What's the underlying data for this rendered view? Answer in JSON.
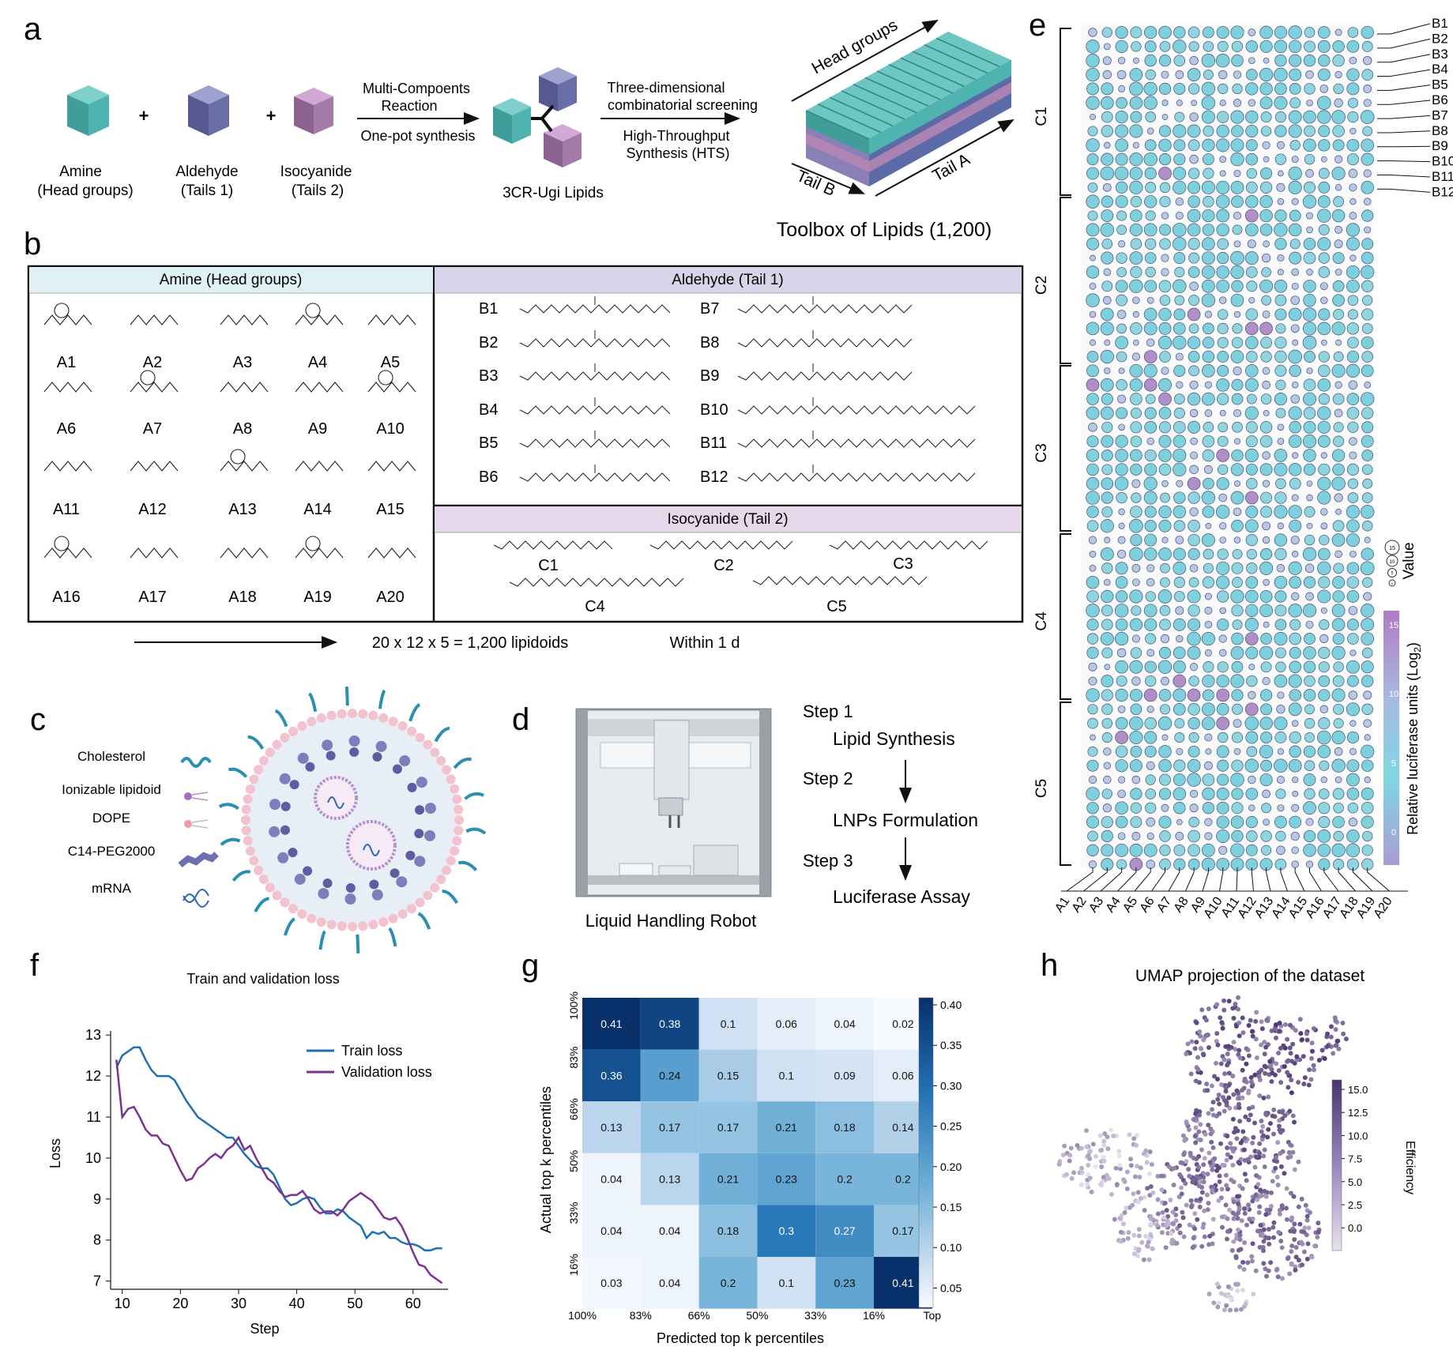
{
  "panel_letters": {
    "a": "a",
    "b": "b",
    "c": "c",
    "d": "d",
    "e": "e",
    "f": "f",
    "g": "g",
    "h": "h"
  },
  "a": {
    "amine_l1": "Amine",
    "amine_l2": "(Head groups)",
    "aldehyde_l1": "Aldehyde",
    "aldehyde_l2": "(Tails 1)",
    "isocyanide_l1": "Isocyanide",
    "isocyanide_l2": "(Tails 2)",
    "plus": "+",
    "mc_l1": "Multi-Compoents",
    "mc_l2": "Reaction",
    "onepot": "One-pot synthesis",
    "ugi": "3CR-Ugi Lipids",
    "three_l1": "Three-dimensional",
    "three_l2": "combinatorial screening",
    "hts_l1": "High-Throughput",
    "hts_l2": "Synthesis (HTS)",
    "head_groups": "Head groups",
    "tail_b": "Tail B",
    "tail_a": "Tail A",
    "toolbox": "Toolbox of Lipids (1,200)",
    "colors": {
      "amine": "#4fb3b0",
      "aldehyde": "#6a6ea8",
      "isocyanide": "#a27aa5"
    }
  },
  "b": {
    "amine_header": "Amine  (Head groups)",
    "aldehyde_header": "Aldehyde  (Tail 1)",
    "isocyanide_header": "Isocyanide (Tail 2)",
    "amines": [
      "A1",
      "A2",
      "A3",
      "A4",
      "A5",
      "A6",
      "A7",
      "A8",
      "A9",
      "A10",
      "A11",
      "A12",
      "A13",
      "A14",
      "A15",
      "A16",
      "A17",
      "A18",
      "A19",
      "A20"
    ],
    "aldehydes": [
      "B1",
      "B2",
      "B3",
      "B4",
      "B5",
      "B6",
      "B7",
      "B8",
      "B9",
      "B10",
      "B11",
      "B12"
    ],
    "isocyanides": [
      "C1",
      "C2",
      "C3",
      "C4",
      "C5"
    ],
    "formula": "20 x 12 x 5 = 1,200 lipidoids",
    "within": "Within 1 d",
    "colors": {
      "amine_header": "#dff1f4",
      "aldehyde_header": "#d5d4e8",
      "isocyanide_header": "#e6d7ea"
    }
  },
  "c": {
    "legend": [
      "Cholesterol",
      "Ionizable lipidoid",
      "DOPE",
      "C14-PEG2000",
      "mRNA"
    ]
  },
  "d": {
    "robot": "Liquid Handling Robot",
    "step1": "Step 1",
    "step1_desc": "Lipid Synthesis",
    "step2": "Step 2",
    "step2_desc": "LNPs Formulation",
    "step3": "Step 3",
    "step3_desc": "Luciferase Assay"
  },
  "e": {
    "value_label": "Value",
    "colorbar_label": "Relative luciferase units (Log",
    "colorbar_sub": "2",
    "colorbar_close": ")",
    "colorbar_ticks": [
      "15",
      "10",
      "5",
      "0"
    ],
    "size_legend": [
      "15",
      "10",
      "5",
      "0"
    ]
  },
  "chart_data": [
    {
      "type": "line",
      "title": "Train and validation loss",
      "xlabel": "Step",
      "ylabel": "Loss",
      "xlim": [
        8,
        66
      ],
      "ylim": [
        6.8,
        13.1
      ],
      "xticks": [
        10,
        20,
        30,
        40,
        50,
        60
      ],
      "yticks": [
        7,
        8,
        9,
        10,
        11,
        12,
        13
      ],
      "series": [
        {
          "name": "Train loss",
          "color": "#1f6fb5",
          "x": [
            9,
            10,
            11,
            12,
            13,
            14,
            15,
            16,
            17,
            18,
            19,
            20,
            21,
            22,
            23,
            24,
            25,
            26,
            27,
            28,
            29,
            30,
            31,
            32,
            33,
            34,
            35,
            36,
            37,
            38,
            39,
            40,
            41,
            42,
            43,
            44,
            45,
            46,
            47,
            48,
            49,
            50,
            51,
            52,
            53,
            54,
            55,
            56,
            57,
            58,
            59,
            60,
            61,
            62,
            63,
            64,
            65
          ],
          "y": [
            12.2,
            12.5,
            12.6,
            12.7,
            12.7,
            12.4,
            12.15,
            12.0,
            12.0,
            12.0,
            11.9,
            11.65,
            11.4,
            11.2,
            11.0,
            10.9,
            10.8,
            10.7,
            10.6,
            10.5,
            10.5,
            10.3,
            10.1,
            9.95,
            9.8,
            9.75,
            9.75,
            9.6,
            9.3,
            9.0,
            8.85,
            8.9,
            9.0,
            9.05,
            9.0,
            8.8,
            8.65,
            8.65,
            8.75,
            8.7,
            8.55,
            8.45,
            8.35,
            8.05,
            8.2,
            8.15,
            8.2,
            8.05,
            8.05,
            7.95,
            7.9,
            7.9,
            7.85,
            7.75,
            7.75,
            7.8,
            7.8
          ]
        },
        {
          "name": "Validation loss",
          "color": "#7b3294",
          "x": [
            9,
            10,
            11,
            12,
            13,
            14,
            15,
            16,
            17,
            18,
            19,
            20,
            21,
            22,
            23,
            24,
            25,
            26,
            27,
            28,
            29,
            30,
            31,
            32,
            33,
            34,
            35,
            36,
            37,
            38,
            39,
            40,
            41,
            42,
            43,
            44,
            45,
            46,
            47,
            48,
            49,
            50,
            51,
            52,
            53,
            54,
            55,
            56,
            57,
            58,
            59,
            60,
            61,
            62,
            63,
            64,
            65
          ],
          "y": [
            12.4,
            11.0,
            11.2,
            11.25,
            11.0,
            10.7,
            10.55,
            10.55,
            10.35,
            10.3,
            10.0,
            9.7,
            9.45,
            9.5,
            9.75,
            9.85,
            10.0,
            10.1,
            10.0,
            10.2,
            10.3,
            10.5,
            10.2,
            10.3,
            10.0,
            9.75,
            9.5,
            9.4,
            9.2,
            9.05,
            9.1,
            9.1,
            9.2,
            9.0,
            8.75,
            8.65,
            8.7,
            8.7,
            8.6,
            8.75,
            8.95,
            9.05,
            9.15,
            9.05,
            8.95,
            8.75,
            8.55,
            8.5,
            8.55,
            8.35,
            8.05,
            7.7,
            7.4,
            7.35,
            7.15,
            7.05,
            6.95
          ]
        }
      ]
    },
    {
      "type": "heatmap",
      "xlabel": "Predicted top k percentiles",
      "ylabel": "Actual top k percentiles",
      "xticks": [
        "100%",
        "83%",
        "66%",
        "50%",
        "33%",
        "16%",
        "Top"
      ],
      "yticks": [
        "100%",
        "83%",
        "66%",
        "50%",
        "33%",
        "16%"
      ],
      "values": [
        [
          0.41,
          0.38,
          0.1,
          0.06,
          0.04,
          0.02
        ],
        [
          0.36,
          0.24,
          0.15,
          0.1,
          0.09,
          0.06
        ],
        [
          0.13,
          0.17,
          0.17,
          0.21,
          0.18,
          0.14
        ],
        [
          0.04,
          0.13,
          0.21,
          0.23,
          0.2,
          0.2
        ],
        [
          0.04,
          0.04,
          0.18,
          0.3,
          0.27,
          0.17
        ],
        [
          0.03,
          0.04,
          0.2,
          0.1,
          0.23,
          0.41
        ]
      ],
      "colorbar_ticks": [
        "0.40",
        "0.35",
        "0.30",
        "0.25",
        "0.20",
        "0.15",
        "0.10",
        "0.05"
      ],
      "vmin": 0.02,
      "vmax": 0.41
    },
    {
      "type": "scatter",
      "title": "UMAP projection of the dataset",
      "colorbar_label": "Efficiency",
      "colorbar_ticks": [
        "15.0",
        "12.5",
        "10.0",
        "7.5",
        "5.0",
        "2.5",
        "0.0"
      ]
    }
  ]
}
